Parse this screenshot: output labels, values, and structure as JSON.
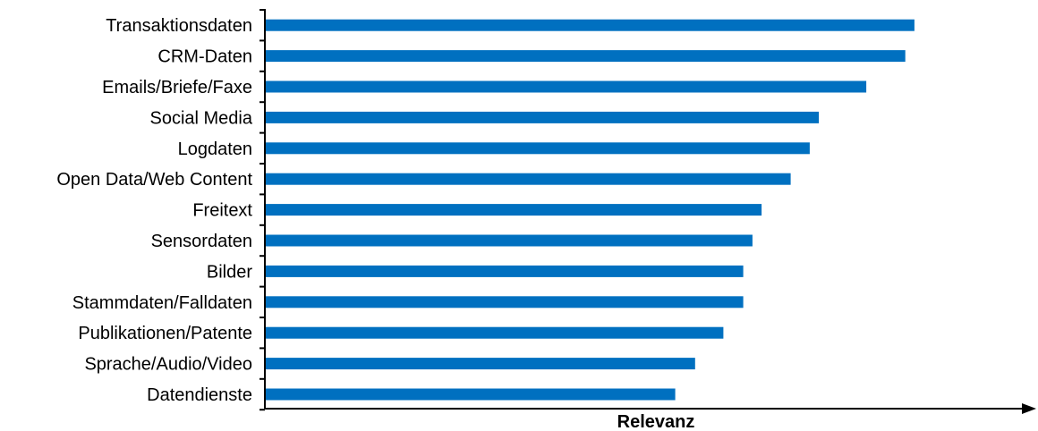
{
  "chart_data": {
    "type": "bar",
    "orientation": "horizontal",
    "categories": [
      "Transaktionsdaten",
      "CRM-Daten",
      "Emails/Briefe/Faxe",
      "Social Media",
      "Logdaten",
      "Open Data/Web Content",
      "Freitext",
      "Sensordaten",
      "Bilder",
      "Stammdaten/Falldaten",
      "Publikationen/Patente",
      "Sprache/Audio/Video",
      "Datendienste"
    ],
    "values": [
      85,
      83.8,
      78.7,
      72.5,
      71.3,
      68.8,
      65,
      63.8,
      62.6,
      62.6,
      60,
      56.3,
      53.7
    ],
    "xlabel": "Relevanz",
    "ylabel": "",
    "xlim": [
      0,
      100
    ],
    "bar_color": "#0070C0",
    "axis_color": "#000000",
    "grid": false,
    "legend": "none",
    "x_tick_labels": false
  }
}
